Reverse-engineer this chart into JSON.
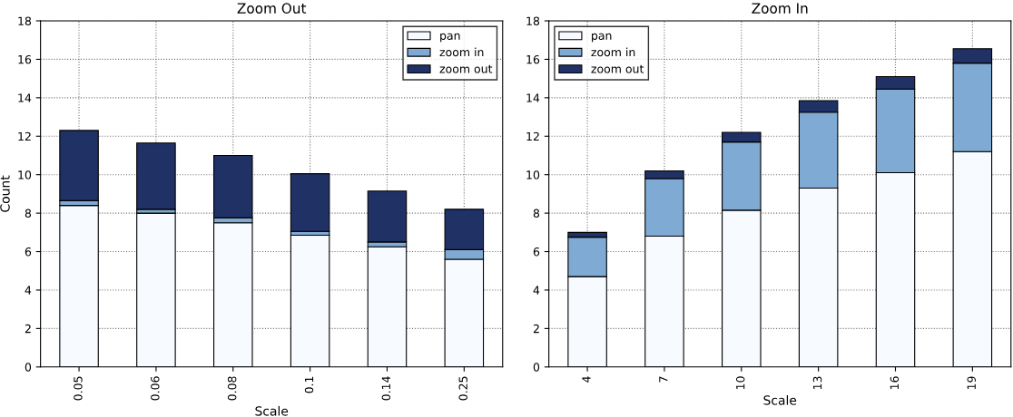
{
  "chart_data": [
    {
      "type": "bar",
      "title": "Zoom Out",
      "xlabel": "Scale",
      "ylabel": "Count",
      "stacked": true,
      "categories": [
        "0.05",
        "0.06",
        "0.08",
        "0.1",
        "0.14",
        "0.25"
      ],
      "series": [
        {
          "name": "pan",
          "color": "#f7fbff",
          "values": [
            8.4,
            8.0,
            7.5,
            6.85,
            6.25,
            5.6
          ]
        },
        {
          "name": "zoom in",
          "color": "#7faad3",
          "values": [
            0.25,
            0.2,
            0.25,
            0.2,
            0.25,
            0.5
          ]
        },
        {
          "name": "zoom out",
          "color": "#1f3165",
          "values": [
            3.65,
            3.45,
            3.25,
            3.0,
            2.65,
            2.1
          ]
        }
      ],
      "ylim": [
        0,
        18
      ],
      "yticks": [
        0,
        2,
        4,
        6,
        8,
        10,
        12,
        14,
        16,
        18
      ],
      "grid": true,
      "legend": "top right"
    },
    {
      "type": "bar",
      "title": "Zoom In",
      "xlabel": "Scale",
      "stacked": true,
      "categories": [
        "4",
        "7",
        "10",
        "13",
        "16",
        "19"
      ],
      "series": [
        {
          "name": "pan",
          "color": "#f7fbff",
          "values": [
            4.7,
            6.8,
            8.15,
            9.3,
            10.1,
            11.2
          ]
        },
        {
          "name": "zoom in",
          "color": "#7faad3",
          "values": [
            2.05,
            3.0,
            3.55,
            3.95,
            4.35,
            4.6
          ]
        },
        {
          "name": "zoom out",
          "color": "#1f3165",
          "values": [
            0.25,
            0.4,
            0.5,
            0.6,
            0.65,
            0.75
          ]
        }
      ],
      "ylim": [
        0,
        18
      ],
      "yticks": [
        0,
        2,
        4,
        6,
        8,
        10,
        12,
        14,
        16,
        18
      ],
      "grid": true,
      "legend": "top left"
    }
  ]
}
